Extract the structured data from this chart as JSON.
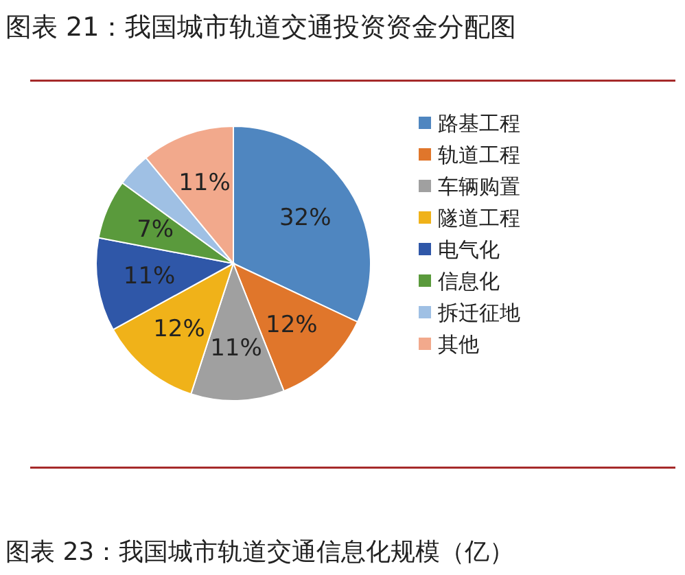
{
  "chart_data": {
    "type": "pie",
    "title": "图表 21：我国城市轨道交通投资资金分配图",
    "categories": [
      "路基工程",
      "轨道工程",
      "车辆购置",
      "隧道工程",
      "电气化",
      "信息化",
      "拆迁征地",
      "其他"
    ],
    "values": [
      32,
      12,
      11,
      12,
      11,
      7,
      4,
      11
    ],
    "colors": [
      "#4f86c0",
      "#e0762b",
      "#a0a0a0",
      "#f0b219",
      "#2f57a8",
      "#5a9a3c",
      "#9fc0e4",
      "#f2a98c"
    ],
    "value_labels": [
      "32%",
      "12%",
      "11%",
      "12%",
      "11%",
      "7%",
      null,
      "11%"
    ],
    "legend": "right",
    "annotations": [
      "图表 23：我国城市轨道交通信息化规模（亿）"
    ]
  }
}
